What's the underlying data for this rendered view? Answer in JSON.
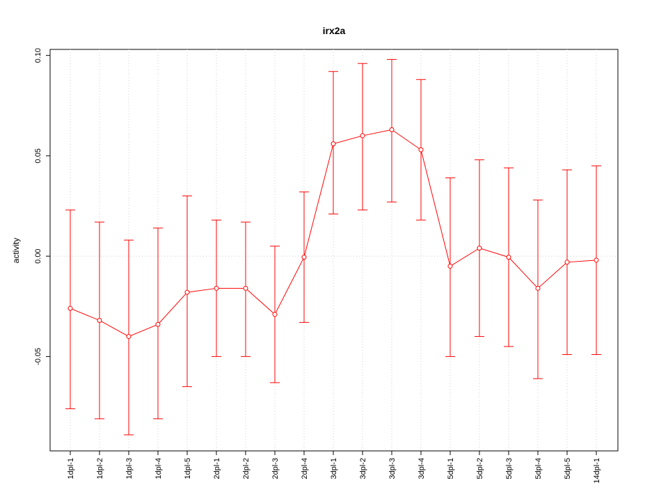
{
  "chart_data": {
    "type": "line",
    "title": "irx2a",
    "xlabel": "",
    "ylabel": "activity",
    "ylim": [
      -0.097,
      0.103
    ],
    "yticks": [
      -0.05,
      0.0,
      0.05,
      0.1
    ],
    "ytick_labels": [
      "-0.05",
      "0.00",
      "0.05",
      "0.10"
    ],
    "grid": true,
    "zero_line": true,
    "color": "#ff0000",
    "categories": [
      "1dpl-1",
      "1dpl-2",
      "1dpl-3",
      "1dpl-4",
      "1dpl-5",
      "2dpl-1",
      "2dpl-2",
      "2dpl-3",
      "2dpl-4",
      "3dpl-1",
      "3dpl-2",
      "3dpl-3",
      "3dpl-4",
      "5dpl-1",
      "5dpl-2",
      "5dpl-3",
      "5dpl-4",
      "5dpl-5",
      "14dpl-1"
    ],
    "series": [
      {
        "values": [
          -0.026,
          -0.032,
          -0.04,
          -0.034,
          -0.018,
          -0.016,
          -0.016,
          -0.029,
          -0.0005,
          0.056,
          0.06,
          0.063,
          0.053,
          -0.005,
          0.004,
          -0.0005,
          -0.016,
          -0.003,
          -0.002
        ],
        "lower": [
          -0.076,
          -0.081,
          -0.089,
          -0.081,
          -0.065,
          -0.05,
          -0.05,
          -0.063,
          -0.033,
          0.021,
          0.023,
          0.027,
          0.018,
          -0.05,
          -0.04,
          -0.045,
          -0.061,
          -0.049,
          -0.049
        ],
        "upper": [
          0.023,
          0.017,
          0.008,
          0.014,
          0.03,
          0.018,
          0.017,
          0.005,
          0.032,
          0.092,
          0.096,
          0.098,
          0.088,
          0.039,
          0.048,
          0.044,
          0.028,
          0.043,
          0.045
        ]
      }
    ]
  }
}
